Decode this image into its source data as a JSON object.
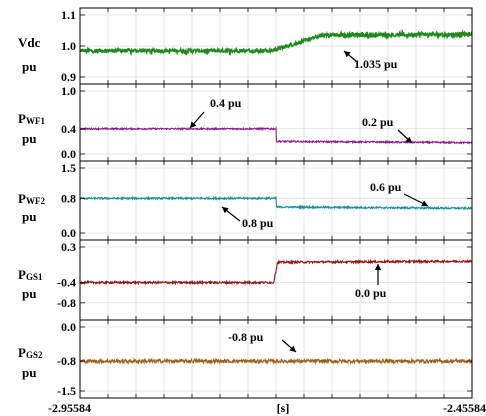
{
  "chart_data": {
    "type": "line",
    "x_range": [
      -2.95584,
      -2.45584
    ],
    "x_ticks": [
      "-2.95584",
      "[s]",
      "-2.45584"
    ],
    "step_time": -2.70584,
    "panels": [
      {
        "id": "vdc",
        "label": "Vdc",
        "unit": "pu",
        "ylim": [
          0.9,
          1.1
        ],
        "y_ticks": [
          "1.1",
          "1.0",
          "0.9"
        ],
        "y_tick_values": [
          1.1,
          1.0,
          0.9
        ],
        "color": "#1e8a1e",
        "noise": 0.006,
        "segments": [
          {
            "t0": -2.95584,
            "t1": -2.71084,
            "v0": 0.985,
            "v1": 0.985
          },
          {
            "t0": -2.71084,
            "t1": -2.64584,
            "v0": 0.985,
            "v1": 1.035
          },
          {
            "t0": -2.64584,
            "t1": -2.45584,
            "v0": 1.035,
            "v1": 1.037
          }
        ],
        "annotations": [
          {
            "text": "1.035 pu",
            "value": 1.035
          }
        ]
      },
      {
        "id": "pwf1",
        "label": "P",
        "label_sub": "WF1",
        "unit": "pu",
        "ylim": [
          0.0,
          1.0
        ],
        "y_ticks": [
          "1.0",
          "0.4",
          "0.0"
        ],
        "y_tick_values": [
          1.0,
          0.4,
          0.0
        ],
        "color": "#8e1a8e",
        "noise": 0.012,
        "segments": [
          {
            "t0": -2.95584,
            "t1": -2.70584,
            "v0": 0.4,
            "v1": 0.4
          },
          {
            "t0": -2.70584,
            "t1": -2.45584,
            "v0": 0.2,
            "v1": 0.18
          }
        ],
        "annotations": [
          {
            "text": "0.4 pu",
            "value": 0.4
          },
          {
            "text": "0.2 pu",
            "value": 0.2
          }
        ]
      },
      {
        "id": "pwf2",
        "label": "P",
        "label_sub": "WF2",
        "unit": "pu",
        "ylim": [
          0.0,
          1.5
        ],
        "y_ticks": [
          "1.5",
          "0.8",
          "0.0"
        ],
        "y_tick_values": [
          1.5,
          0.8,
          0.0
        ],
        "color": "#1a8f8f",
        "noise": 0.02,
        "segments": [
          {
            "t0": -2.95584,
            "t1": -2.70584,
            "v0": 0.8,
            "v1": 0.8
          },
          {
            "t0": -2.70584,
            "t1": -2.45584,
            "v0": 0.6,
            "v1": 0.57
          }
        ],
        "annotations": [
          {
            "text": "0.6 pu",
            "value": 0.6
          },
          {
            "text": "0.8 pu",
            "value": 0.8
          }
        ]
      },
      {
        "id": "pgs1",
        "label": "P",
        "label_sub": "GS1",
        "unit": "pu",
        "ylim": [
          -1.0,
          0.3
        ],
        "y_ticks": [
          "0.3",
          "-0.4",
          "-0.8"
        ],
        "y_tick_values": [
          0.3,
          -0.4,
          -0.8
        ],
        "color": "#8e1414",
        "noise": 0.02,
        "segments": [
          {
            "t0": -2.95584,
            "t1": -2.70884,
            "v0": -0.4,
            "v1": -0.4
          },
          {
            "t0": -2.70884,
            "t1": -2.70384,
            "v0": -0.4,
            "v1": 0.0
          },
          {
            "t0": -2.70384,
            "t1": -2.45584,
            "v0": 0.0,
            "v1": 0.02
          }
        ],
        "annotations": [
          {
            "text": "0.0 pu",
            "value": 0.0
          }
        ]
      },
      {
        "id": "pgs2",
        "label": "P",
        "label_sub": "GS2",
        "unit": "pu",
        "ylim": [
          -1.5,
          0.0
        ],
        "y_ticks": [
          "0.0",
          "-0.8",
          "-1.5"
        ],
        "y_tick_values": [
          0.0,
          -0.8,
          -1.5
        ],
        "color": "#a0611a",
        "noise": 0.045,
        "segments": [
          {
            "t0": -2.95584,
            "t1": -2.45584,
            "v0": -0.8,
            "v1": -0.8
          }
        ],
        "annotations": [
          {
            "text": "-0.8 pu",
            "value": -0.8
          }
        ]
      }
    ]
  }
}
